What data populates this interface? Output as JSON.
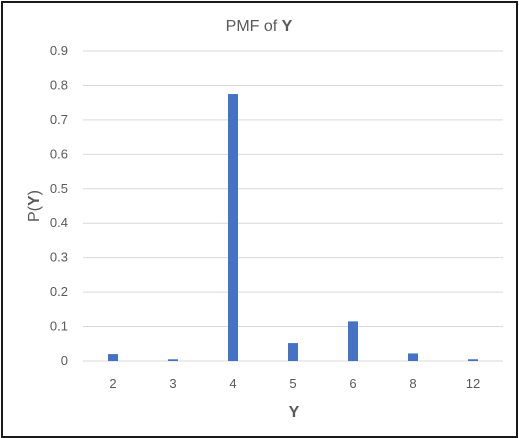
{
  "chart_data": {
    "type": "bar",
    "title_prefix": "PMF of ",
    "title_var": "Y",
    "xlabel": "Y",
    "ylabel_prefix": "P(",
    "ylabel_var": "Y",
    "ylabel_suffix": ")",
    "categories": [
      "2",
      "3",
      "4",
      "5",
      "6",
      "8",
      "12"
    ],
    "values": [
      0.02,
      0.005,
      0.775,
      0.052,
      0.115,
      0.022,
      0.005
    ],
    "ylim": [
      0,
      0.9
    ],
    "yticks": [
      "0",
      "0.1",
      "0.2",
      "0.3",
      "0.4",
      "0.5",
      "0.6",
      "0.7",
      "0.8",
      "0.9"
    ],
    "grid": true,
    "legend": "none",
    "bar_color": "#4472c4",
    "grid_color": "#d9d9d9"
  }
}
